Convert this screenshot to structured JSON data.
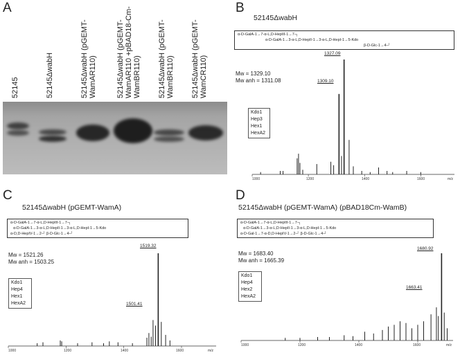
{
  "panels": {
    "a": {
      "letter": "A",
      "lanes": [
        "52145",
        "52145ΔwabH",
        "52145ΔwabH (pGEMT-WamAR110)",
        "52145ΔwabH (pGEMT-WamAR110 +pBAD18-Cm-WamBR110)",
        "52145ΔwabH (pGEMT-WamBR110)",
        "52145ΔwabH (pGEMT-WamCR110)"
      ]
    },
    "b": {
      "letter": "B",
      "title": "52145ΔwabH",
      "structure": [
        "α-D-GalA-1→7-α-L,D-HepIII-1→7-┐",
        "α-D-GalA-1→3-α-L,D-HepII-1→3-α-L,D-HepI-1→5-Kdo",
        "β-D-Glc-1→4-┘"
      ],
      "mw": [
        "Mw = 1329.10",
        "Mw anh = 1311.08"
      ],
      "composition": [
        "Kdo1",
        "Hep3",
        "Hex1",
        "HexA2"
      ],
      "peaks": [
        "1327.09",
        "1309.10"
      ],
      "xticks": [
        "1000",
        "1200",
        "1400",
        "1600",
        "m/z"
      ]
    },
    "c": {
      "letter": "C",
      "title": "52145ΔwabH (pGEMT-WamA)",
      "structure": [
        "α-D-GalA-1→7-α-L,D-HepIII-1→7-┐",
        "α-D-GalA-1→3-α-L,D-HepII-1→3-α-L,D-HepI-1→5-Kdo",
        "α-D,D-HepIV-1→2-┘   β-D-Glc-1→4-┘"
      ],
      "mw": [
        "Mw = 1521.26",
        "Mw anh = 1503.25"
      ],
      "composition": [
        "Kdo1",
        "Hep4",
        "Hex1",
        "HexA2"
      ],
      "peaks": [
        "1519.32",
        "1501.41"
      ],
      "xticks": [
        "1000",
        "1200",
        "1400",
        "1600",
        "m/z"
      ]
    },
    "d": {
      "letter": "D",
      "title": "52145ΔwabH (pGEMT-WamA) (pBAD18Cm-WamB)",
      "structure": [
        "α-D-GalA-1→7-α-L,D-HepIII-1→7-┐",
        "α-D-GalA-1→3-α-L,D-HepII-1→3-α-L,D-HepI-1→5-Kdo",
        "α-D-Gal-1→7-α-D,D-HepIV-1→2-┘   β-D-Glc-1→4-┘"
      ],
      "mw": [
        "Mw = 1683.40",
        "Mw anh = 1665.39"
      ],
      "composition": [
        "Kdo1",
        "Hep4",
        "Hex2",
        "HexA2"
      ],
      "peaks": [
        "1680.92",
        "1663.41"
      ],
      "xticks": [
        "1000",
        "1200",
        "1400",
        "1600",
        "m/z"
      ]
    }
  },
  "chart_data": [
    {
      "type": "line",
      "panel": "B",
      "xlim": [
        1000,
        1720
      ],
      "xlabel": "m/z",
      "peaks_x": [
        1030,
        1100,
        1110,
        1160,
        1165,
        1170,
        1180,
        1230,
        1280,
        1290,
        1309.1,
        1318,
        1327.09,
        1345,
        1360,
        1390,
        1420,
        1450,
        1480,
        1500,
        1550,
        1600
      ],
      "peaks_y": [
        2,
        3,
        3,
        14,
        18,
        10,
        4,
        9,
        11,
        8,
        70,
        16,
        100,
        30,
        7,
        3,
        2,
        6,
        3,
        2,
        3,
        2
      ]
    },
    {
      "type": "line",
      "panel": "C",
      "xlim": [
        1000,
        1720
      ],
      "xlabel": "m/z",
      "peaks_x": [
        1100,
        1120,
        1180,
        1185,
        1240,
        1290,
        1330,
        1350,
        1380,
        1430,
        1480,
        1487,
        1495,
        1501.41,
        1510,
        1519.32,
        1530,
        1545,
        1560
      ],
      "peaks_y": [
        3,
        4,
        6,
        5,
        3,
        4,
        3,
        5,
        4,
        3,
        9,
        14,
        10,
        28,
        22,
        100,
        26,
        12,
        6
      ]
    },
    {
      "type": "line",
      "panel": "D",
      "xlim": [
        1000,
        1720
      ],
      "xlabel": "m/z",
      "peaks_x": [
        1150,
        1200,
        1260,
        1300,
        1350,
        1380,
        1420,
        1450,
        1480,
        1500,
        1520,
        1540,
        1560,
        1580,
        1600,
        1620,
        1645,
        1663.41,
        1670,
        1680.92,
        1690,
        1700
      ],
      "peaks_y": [
        3,
        3,
        4,
        4,
        6,
        5,
        10,
        8,
        12,
        16,
        18,
        22,
        20,
        14,
        18,
        22,
        30,
        38,
        28,
        100,
        32,
        14
      ]
    }
  ]
}
